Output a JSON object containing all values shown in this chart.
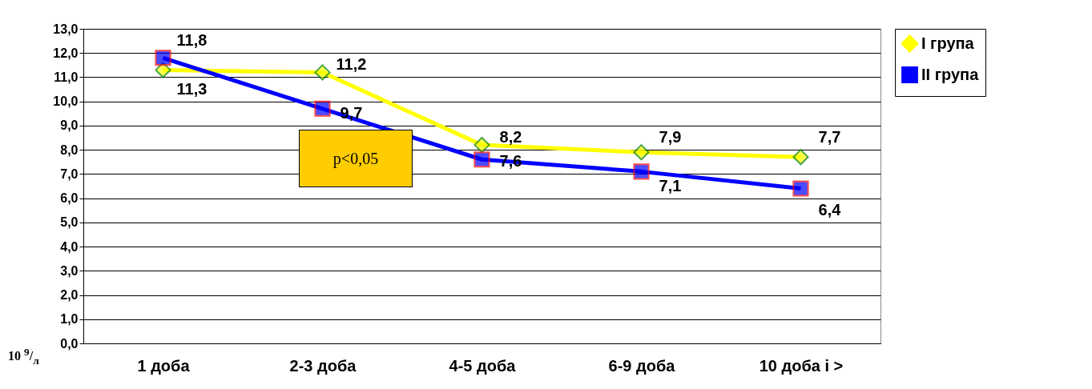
{
  "chart_data": {
    "type": "line",
    "ylabel": "10 $^{9}$/$_{л}$",
    "categories": [
      "1 доба",
      "2-3 доба",
      "4-5 доба",
      "6-9 доба",
      "10 доба і >"
    ],
    "series": [
      {
        "name": "І група",
        "color": "#ffff00",
        "marker": "diamond",
        "values": [
          11.3,
          11.2,
          8.2,
          7.9,
          7.7
        ],
        "value_labels": [
          "11,3",
          "11,2",
          "8,2",
          "7,9",
          "7,7"
        ]
      },
      {
        "name": "ІІ група",
        "color": "#0000ff",
        "marker": "square",
        "values": [
          11.8,
          9.7,
          7.6,
          7.1,
          6.4
        ],
        "value_labels": [
          "11,8",
          "9,7",
          "7,6",
          "7,1",
          "6,4"
        ]
      }
    ],
    "ylim": [
      0,
      13
    ],
    "yticks": [
      {
        "value": 0,
        "label": "0,0"
      },
      {
        "value": 1,
        "label": "1,0"
      },
      {
        "value": 2,
        "label": "2,0"
      },
      {
        "value": 3,
        "label": "3,0"
      },
      {
        "value": 4,
        "label": "4,0"
      },
      {
        "value": 5,
        "label": "5,0"
      },
      {
        "value": 6,
        "label": "6,0"
      },
      {
        "value": 7,
        "label": "7,0"
      },
      {
        "value": 8,
        "label": "8,0"
      },
      {
        "value": 9,
        "label": "9,0"
      },
      {
        "value": 10,
        "label": "10,0"
      },
      {
        "value": 11,
        "label": "11,0"
      },
      {
        "value": 12,
        "label": "12,0"
      },
      {
        "value": 13,
        "label": "13,0"
      }
    ],
    "grid": "y",
    "legend": "right",
    "data_labels": true,
    "annotations": [
      "p<0,05"
    ]
  }
}
